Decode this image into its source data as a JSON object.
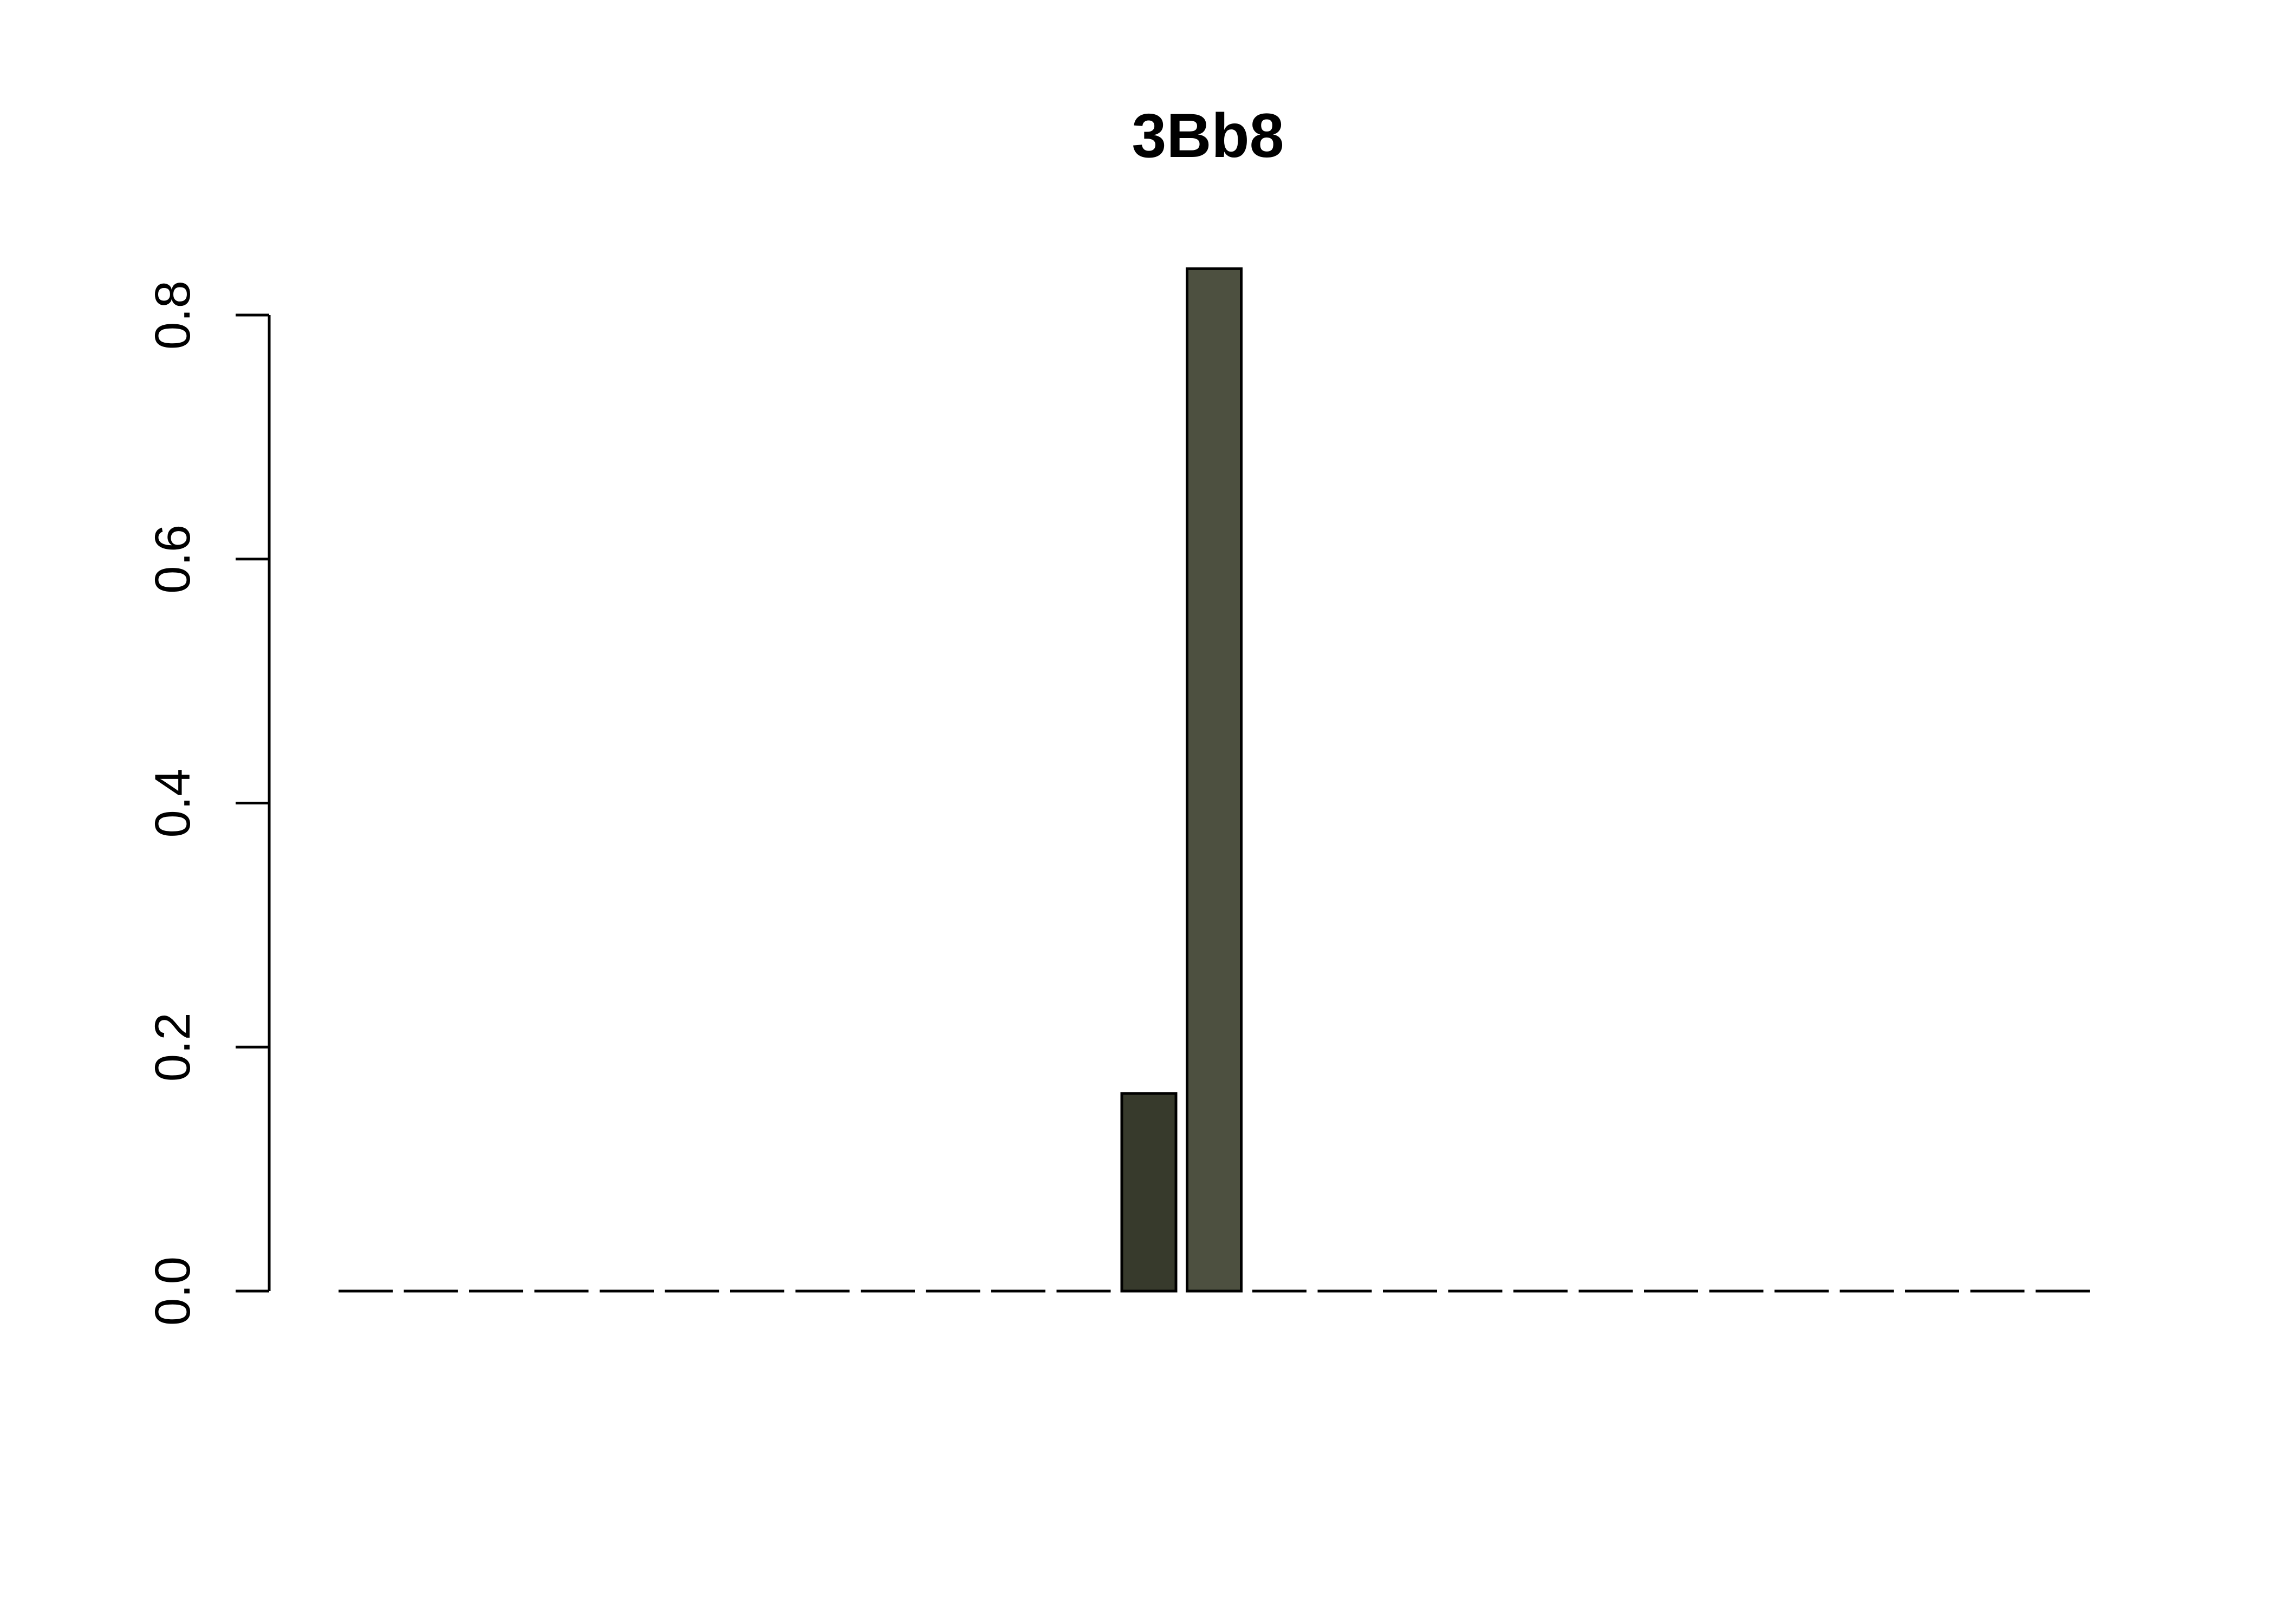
{
  "chart_data": {
    "type": "bar",
    "title": "3Bb8",
    "xlabel": "",
    "ylabel": "",
    "ylim": [
      0,
      0.8
    ],
    "yticks": [
      0.0,
      0.2,
      0.4,
      0.6,
      0.8
    ],
    "ytick_labels": [
      "0.0",
      "0.2",
      "0.4",
      "0.6",
      "0.8"
    ],
    "grid": false,
    "legend": "none",
    "bar_count": 27,
    "values": [
      0,
      0,
      0,
      0,
      0,
      0,
      0,
      0,
      0,
      0,
      0,
      0,
      0.162,
      0.838,
      0,
      0,
      0,
      0,
      0,
      0,
      0,
      0,
      0,
      0,
      0,
      0,
      0
    ],
    "colors": [
      "#373a2c",
      "#373a2c",
      "#373a2c",
      "#373a2c",
      "#373a2c",
      "#373a2c",
      "#373a2c",
      "#373a2c",
      "#373a2c",
      "#373a2c",
      "#373a2c",
      "#373a2c",
      "#373a2c",
      "#4d5040",
      "#4d5040",
      "#4d5040",
      "#4d5040",
      "#4d5040",
      "#4d5040",
      "#4d5040",
      "#4d5040",
      "#4d5040",
      "#4d5040",
      "#4d5040",
      "#4d5040",
      "#4d5040",
      "#4d5040"
    ]
  }
}
